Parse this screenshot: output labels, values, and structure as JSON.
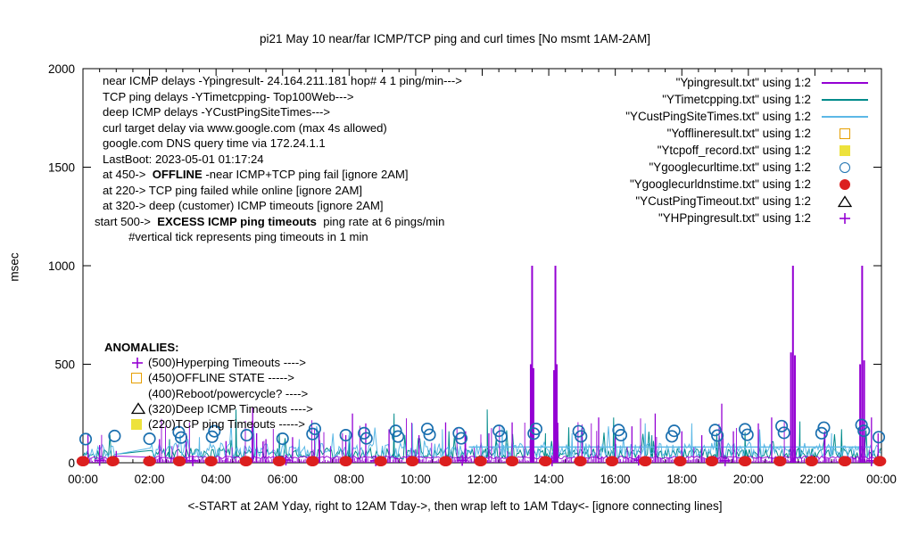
{
  "chart_data": {
    "type": "line",
    "title": "pi21 May 10  near/far ICMP/TCP ping and curl times [No msmt 1AM-2AM]",
    "ylabel": "msec",
    "xlabel": "<-START at 2AM Yday, right to 12AM Tday->, then wrap left to 1AM Tday<- [ignore connecting lines]",
    "ylim": [
      0,
      2000
    ],
    "yticks": [
      0,
      500,
      1000,
      1500,
      2000
    ],
    "xtick_hours": [
      0,
      2,
      4,
      6,
      8,
      10,
      12,
      14,
      16,
      18,
      20,
      22,
      24
    ],
    "xtick_labels": [
      "00:00",
      "02:00",
      "04:00",
      "06:00",
      "08:00",
      "10:00",
      "12:00",
      "14:00",
      "16:00",
      "18:00",
      "20:00",
      "22:00",
      "00:00"
    ],
    "gap_hours": [
      1,
      2
    ],
    "noise_seed": 42,
    "grid": false,
    "legend_position": "top-right",
    "series": [
      {
        "name": "Ypingresult",
        "legend": "\"Ypingresult.txt\" using 1:2",
        "color": "#9400D3",
        "style": "impulses",
        "baseline": 27,
        "spikes": [
          [
            0.15,
            150
          ],
          [
            0.5,
            90
          ],
          [
            1.0,
            60
          ],
          [
            2.3,
            120
          ],
          [
            3.1,
            150
          ],
          [
            4.3,
            110
          ],
          [
            5.1,
            280
          ],
          [
            5.22,
            150
          ],
          [
            5.5,
            120
          ],
          [
            6.3,
            130
          ],
          [
            7.1,
            160
          ],
          [
            7.9,
            140
          ],
          [
            8.1,
            250
          ],
          [
            8.5,
            200
          ],
          [
            9.2,
            170
          ],
          [
            10.1,
            140
          ],
          [
            10.9,
            205
          ],
          [
            11.5,
            160
          ],
          [
            12.2,
            150
          ],
          [
            12.9,
            205
          ],
          [
            13.46,
            500
          ],
          [
            13.5,
            1000
          ],
          [
            13.54,
            480
          ],
          [
            14.16,
            470
          ],
          [
            14.2,
            1000
          ],
          [
            14.24,
            500
          ],
          [
            15.0,
            160
          ],
          [
            15.5,
            230
          ],
          [
            16.0,
            150
          ],
          [
            16.5,
            185
          ],
          [
            17.2,
            250
          ],
          [
            18.0,
            160
          ],
          [
            18.6,
            140
          ],
          [
            19.2,
            300
          ],
          [
            19.55,
            160
          ],
          [
            20.3,
            200
          ],
          [
            20.7,
            230
          ],
          [
            21.28,
            560
          ],
          [
            21.34,
            1000
          ],
          [
            21.4,
            545
          ],
          [
            22.3,
            160
          ],
          [
            23.36,
            500
          ],
          [
            23.42,
            1000
          ],
          [
            23.48,
            520
          ],
          [
            23.7,
            230
          ],
          [
            23.9,
            150
          ]
        ]
      },
      {
        "name": "YTimetcpping",
        "legend": "\"YTimetcpping.txt\" using 1:2",
        "color": "#008B8B",
        "style": "noisy-line",
        "base": [
          18,
          75
        ],
        "spikes": [
          [
            2.6,
            120
          ],
          [
            4.6,
            270
          ],
          [
            5.9,
            150
          ],
          [
            8.0,
            140
          ],
          [
            9.35,
            250
          ],
          [
            11.0,
            160
          ],
          [
            12.15,
            270
          ],
          [
            13.9,
            150
          ],
          [
            14.6,
            180
          ],
          [
            15.95,
            230
          ],
          [
            17.1,
            140
          ],
          [
            19.05,
            150
          ],
          [
            19.9,
            155
          ],
          [
            21.55,
            210
          ],
          [
            22.8,
            170
          ]
        ]
      },
      {
        "name": "YCustPingSiteTimes",
        "legend": "\"YCustPingSiteTimes.txt\" using 1:2",
        "color": "#5CB8E6",
        "style": "noisy-line",
        "base": [
          22,
          100
        ],
        "spikes": [
          [
            3.5,
            130
          ],
          [
            6.5,
            120
          ],
          [
            9.9,
            200
          ],
          [
            10.8,
            170
          ],
          [
            12.6,
            190
          ],
          [
            14.7,
            150
          ],
          [
            16.9,
            200
          ],
          [
            18.3,
            200
          ],
          [
            20.3,
            180
          ],
          [
            22.5,
            150
          ]
        ],
        "flat_segments": [
          [
            11.6,
            23.7,
            80
          ]
        ]
      },
      {
        "name": "Yofflineresult",
        "legend": "\"Yofflineresult.txt\" using 1:2",
        "color": "#E69F00",
        "style": "points",
        "marker": "open-square",
        "points": []
      },
      {
        "name": "Ytcpoff_record",
        "legend": "\"Ytcpoff_record.txt\" using 1:2",
        "color": "#EDE23C",
        "style": "points",
        "marker": "filled-square",
        "points": []
      },
      {
        "name": "Ygooglecurltime",
        "legend": "\"Ygooglecurltime.txt\" using 1:2",
        "color": "#1A6FAF",
        "style": "points",
        "marker": "open-circle",
        "points": [
          [
            0.08,
            120
          ],
          [
            0.95,
            136
          ],
          [
            2.0,
            122
          ],
          [
            2.88,
            155
          ],
          [
            2.95,
            128
          ],
          [
            3.88,
            132
          ],
          [
            3.95,
            160
          ],
          [
            4.92,
            140
          ],
          [
            6.0,
            122
          ],
          [
            6.9,
            146
          ],
          [
            6.97,
            172
          ],
          [
            7.9,
            140
          ],
          [
            8.45,
            150
          ],
          [
            8.52,
            124
          ],
          [
            9.4,
            162
          ],
          [
            9.47,
            133
          ],
          [
            10.35,
            172
          ],
          [
            10.42,
            142
          ],
          [
            11.3,
            150
          ],
          [
            11.37,
            124
          ],
          [
            12.5,
            162
          ],
          [
            12.57,
            134
          ],
          [
            13.55,
            148
          ],
          [
            13.62,
            172
          ],
          [
            14.9,
            160
          ],
          [
            14.97,
            134
          ],
          [
            16.1,
            166
          ],
          [
            16.17,
            140
          ],
          [
            17.7,
            134
          ],
          [
            17.77,
            162
          ],
          [
            19.0,
            166
          ],
          [
            19.07,
            138
          ],
          [
            19.9,
            170
          ],
          [
            19.97,
            142
          ],
          [
            21.0,
            186
          ],
          [
            21.07,
            152
          ],
          [
            22.2,
            150
          ],
          [
            22.27,
            178
          ],
          [
            23.4,
            192
          ],
          [
            23.47,
            162
          ],
          [
            23.92,
            130
          ]
        ]
      },
      {
        "name": "Ygooglecurldnstime",
        "legend": "\"Ygooglecurldnstime.txt\" using 1:2",
        "color": "#DC1F1F",
        "style": "points",
        "marker": "filled-circle",
        "points": [
          [
            0,
            8
          ],
          [
            0.9,
            8
          ],
          [
            2,
            8
          ],
          [
            2.9,
            8
          ],
          [
            3.85,
            8
          ],
          [
            4.9,
            8
          ],
          [
            5.9,
            8
          ],
          [
            6.9,
            8
          ],
          [
            7.9,
            8
          ],
          [
            8.95,
            8
          ],
          [
            9.9,
            8
          ],
          [
            10.9,
            8
          ],
          [
            11.95,
            8
          ],
          [
            12.9,
            8
          ],
          [
            13.9,
            8
          ],
          [
            14.95,
            8
          ],
          [
            15.9,
            8
          ],
          [
            16.9,
            8
          ],
          [
            17.95,
            8
          ],
          [
            18.9,
            8
          ],
          [
            19.9,
            8
          ],
          [
            20.95,
            8
          ],
          [
            21.9,
            8
          ],
          [
            22.9,
            8
          ],
          [
            23.95,
            8
          ]
        ]
      },
      {
        "name": "YCustPingTimeout",
        "legend": "\"YCustPingTimeout.txt\" using 1:2",
        "color": "#000000",
        "style": "points",
        "marker": "open-triangle",
        "points": []
      },
      {
        "name": "YHPpingresult",
        "legend": "\"YHPpingresult.txt\" using 1:2",
        "color": "#9400D3",
        "style": "points",
        "marker": "plus",
        "points": [
          [
            0.5,
            12
          ],
          [
            3.3,
            10
          ],
          [
            6.1,
            14
          ],
          [
            8.8,
            10
          ],
          [
            11.4,
            12
          ],
          [
            14.1,
            10
          ],
          [
            16.7,
            13
          ],
          [
            19.3,
            10
          ],
          [
            21.9,
            12
          ],
          [
            23.7,
            10
          ]
        ]
      }
    ],
    "annotations": {
      "info_lines": [
        {
          "pre": "near ICMP delays -Ypingresult- 24.164.211.181 hop# 4 1 ping/min--->",
          "bold": "",
          "post": ""
        },
        {
          "pre": "TCP ping delays -YTimetcpping- Top100Web--->",
          "bold": "",
          "post": ""
        },
        {
          "pre": "deep ICMP delays -YCustPingSiteTimes--->",
          "bold": "",
          "post": ""
        },
        {
          "pre": "curl target delay via www.google.com (max 4s allowed)",
          "bold": "",
          "post": ""
        },
        {
          "pre": "google.com DNS query time via 172.24.1.1",
          "bold": "",
          "post": ""
        },
        {
          "pre": "LastBoot: 2023-05-01 01:17:24",
          "bold": "",
          "post": ""
        },
        {
          "pre": "at 450->  ",
          "bold": "OFFLINE",
          "post": " -near ICMP+TCP ping fail [ignore 2AM]"
        },
        {
          "pre": "at 220-> TCP ping failed while online [ignore 2AM]",
          "bold": "",
          "post": ""
        },
        {
          "pre": "at 320-> deep (customer) ICMP timeouts [ignore 2AM]",
          "bold": "",
          "post": "",
          "outdent": false
        },
        {
          "pre": "start 500->  ",
          "bold": "EXCESS ICMP ping timeouts",
          "post": "  ping rate at 6 pings/min",
          "outdent": true
        },
        {
          "pre": "        #vertical tick represents ping timeouts in 1 min",
          "bold": "",
          "post": ""
        }
      ],
      "anomalies": {
        "header": "ANOMALIES:",
        "rows": [
          {
            "marker": "plus",
            "color": "#9400D3",
            "label": "(500)Hyperping Timeouts ---->"
          },
          {
            "marker": "open-square",
            "color": "#E69F00",
            "label": "(450)OFFLINE STATE ----->"
          },
          {
            "marker": "none",
            "color": "#000000",
            "label": "(400)Reboot/powercycle? ---->"
          },
          {
            "marker": "open-triangle",
            "color": "#000000",
            "label": "(320)Deep ICMP Timeouts ---->"
          },
          {
            "marker": "filled-square",
            "color": "#EDE23C",
            "label": "(220)TCP ping Timeouts ----->"
          }
        ]
      }
    }
  }
}
